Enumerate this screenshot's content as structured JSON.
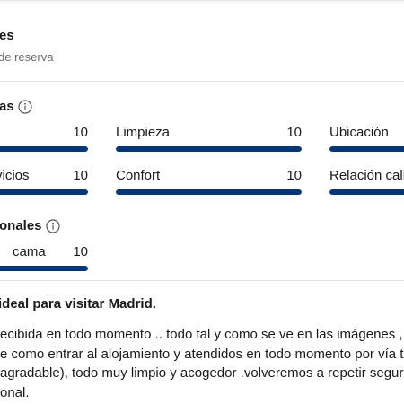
{
  "header": {
    "title": "es",
    "subtitle": "de reserva"
  },
  "categories_section": {
    "title": "as",
    "items": [
      {
        "label": "",
        "value": "10",
        "fill": 1.0
      },
      {
        "label": "Limpieza",
        "value": "10",
        "fill": 1.0
      },
      {
        "label": "Ubicación",
        "value": "",
        "fill": 1.0
      },
      {
        "label": "rvicios",
        "value": "10",
        "fill": 1.0
      },
      {
        "label": "Confort",
        "value": "10",
        "fill": 1.0
      },
      {
        "label": "Relación calid",
        "value": "",
        "fill": 1.0
      }
    ]
  },
  "additional_section": {
    "title": "onales",
    "items": [
      {
        "label": "cama",
        "value": "10",
        "fill": 1.0
      }
    ]
  },
  "review": {
    "title": "ideal para visitar Madrid.",
    "lines": [
      "ecibida en todo momento .. todo tal y como se ve en las imágenes , nos e",
      "e como entrar al alojamiento y atendidos en todo momento por vía telefo",
      "agradable), todo muy limpio y acogedor .volveremos a repetir seguro... G",
      "onal."
    ]
  },
  "colors": {
    "bar_fill": "#003580",
    "bar_track": "#e7e7e7",
    "muted_text": "#6b6b6b",
    "divider": "#e3e3e3"
  },
  "icons": {
    "info": "info-circle-icon"
  }
}
